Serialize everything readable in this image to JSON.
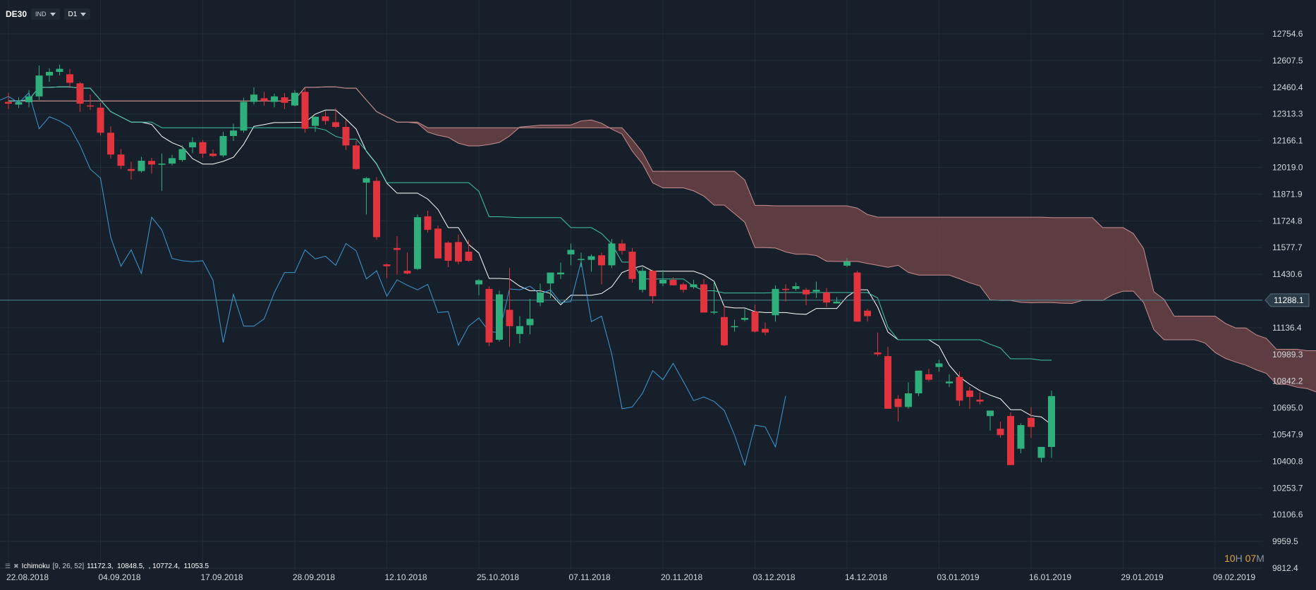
{
  "toolbar": {
    "symbol": "DE30",
    "type_label": "IND",
    "timeframe_label": "D1"
  },
  "indicator": {
    "name": "Ichimoku",
    "params": "[9, 26, 52]",
    "values": "11172.3,  10848.5,  , 10772.4,  11053.5"
  },
  "countdown": {
    "hours": "10",
    "hours_unit": "H",
    "minutes": "07",
    "minutes_unit": "M"
  },
  "colors": {
    "background": "#17202a",
    "bull": "#2faf7c",
    "bear": "#e2343f",
    "cloud": "#6a4347",
    "cloud_edge": "#c78d8f",
    "tenkan": "#ffffff",
    "kijun": "#3fc4a8",
    "chikou": "#3d9ad8",
    "grid": "#222c37",
    "price_line": "#4a8a96"
  },
  "chart_data": {
    "type": "candlestick",
    "symbol": "DE30",
    "timeframe": "D1",
    "y_ticks": [
      12754.6,
      12607.5,
      12460.4,
      12313.3,
      12166.1,
      12019.0,
      11871.9,
      11724.8,
      11577.7,
      11430.6,
      11136.4,
      10989.3,
      10842.2,
      10695.0,
      10547.9,
      10400.8,
      10253.7,
      10106.6,
      9959.5,
      9812.4
    ],
    "current_price": 11288.1,
    "x_labels": [
      "22.08.2018",
      "04.09.2018",
      "17.09.2018",
      "28.09.2018",
      "12.10.2018",
      "25.10.2018",
      "07.11.2018",
      "20.11.2018",
      "03.12.2018",
      "14.12.2018",
      "03.01.2019",
      "16.01.2019",
      "29.01.2019",
      "09.02.2019"
    ],
    "x_label_bars": [
      0,
      9,
      19,
      28,
      37,
      46,
      55,
      64,
      73,
      82,
      91,
      100,
      109,
      118
    ],
    "last_bar": 112,
    "candles_ohlc": [
      [
        12380,
        12430,
        12340,
        12370
      ],
      [
        12365,
        12405,
        12345,
        12378
      ],
      [
        12378,
        12445,
        12350,
        12410
      ],
      [
        12410,
        12580,
        12390,
        12525
      ],
      [
        12525,
        12565,
        12490,
        12545
      ],
      [
        12545,
        12585,
        12525,
        12562
      ],
      [
        12532,
        12560,
        12455,
        12485
      ],
      [
        12482,
        12490,
        12325,
        12370
      ],
      [
        12360,
        12420,
        12335,
        12355
      ],
      [
        12348,
        12375,
        12195,
        12210
      ],
      [
        12210,
        12245,
        12068,
        12090
      ],
      [
        12090,
        12120,
        12010,
        12028
      ],
      [
        12010,
        12050,
        11952,
        12000
      ],
      [
        11999,
        12078,
        11990,
        12056
      ],
      [
        12055,
        12072,
        11985,
        12035
      ],
      [
        12034,
        12095,
        11890,
        12040
      ],
      [
        12040,
        12088,
        12030,
        12070
      ],
      [
        12060,
        12140,
        12050,
        12120
      ],
      [
        12130,
        12185,
        12098,
        12158
      ],
      [
        12158,
        12170,
        12072,
        12095
      ],
      [
        12095,
        12118,
        12075,
        12082
      ],
      [
        12085,
        12215,
        12075,
        12192
      ],
      [
        12192,
        12260,
        12165,
        12222
      ],
      [
        12222,
        12403,
        12210,
        12380
      ],
      [
        12380,
        12460,
        12365,
        12420
      ],
      [
        12400,
        12435,
        12358,
        12385
      ],
      [
        12380,
        12425,
        12350,
        12410
      ],
      [
        12405,
        12428,
        12340,
        12375
      ],
      [
        12360,
        12445,
        12355,
        12430
      ],
      [
        12435,
        12455,
        12210,
        12232
      ],
      [
        12248,
        12300,
        12215,
        12298
      ],
      [
        12300,
        12330,
        12255,
        12275
      ],
      [
        12268,
        12345,
        12235,
        12242
      ],
      [
        12242,
        12280,
        12115,
        12140
      ],
      [
        12140,
        12165,
        12005,
        12010
      ],
      [
        11935,
        11965,
        11760,
        11960
      ],
      [
        11945,
        11965,
        11620,
        11635
      ],
      [
        11485,
        11490,
        11410,
        11475
      ],
      [
        11575,
        11640,
        11430,
        11565
      ],
      [
        11450,
        11550,
        11430,
        11435
      ],
      [
        11460,
        11760,
        11455,
        11745
      ],
      [
        11750,
        11780,
        11660,
        11675
      ],
      [
        11682,
        11700,
        11555,
        11518
      ],
      [
        11605,
        11612,
        11470,
        11505
      ],
      [
        11608,
        11650,
        11485,
        11500
      ],
      [
        11555,
        11620,
        11500,
        11505
      ],
      [
        11375,
        11405,
        11315,
        11398
      ],
      [
        11350,
        11365,
        11035,
        11055
      ],
      [
        11070,
        11340,
        11060,
        11320
      ],
      [
        11235,
        11465,
        11030,
        11145
      ],
      [
        11102,
        11200,
        11050,
        11145
      ],
      [
        11150,
        11295,
        11100,
        11185
      ],
      [
        11275,
        11380,
        11255,
        11330
      ],
      [
        11380,
        11385,
        11300,
        11440
      ],
      [
        11430,
        11495,
        11405,
        11440
      ],
      [
        11540,
        11600,
        11480,
        11565
      ],
      [
        11510,
        11550,
        11470,
        11515
      ],
      [
        11510,
        11540,
        11445,
        11530
      ],
      [
        11535,
        11550,
        11375,
        11480
      ],
      [
        11480,
        11625,
        11465,
        11600
      ],
      [
        11600,
        11620,
        11540,
        11560
      ],
      [
        11555,
        11575,
        11385,
        11405
      ],
      [
        11345,
        11470,
        11330,
        11450
      ],
      [
        11450,
        11455,
        11270,
        11310
      ],
      [
        11380,
        11455,
        11365,
        11400
      ],
      [
        11400,
        11415,
        11375,
        11370
      ],
      [
        11375,
        11385,
        11330,
        11345
      ],
      [
        11360,
        11400,
        11350,
        11375
      ],
      [
        11375,
        11405,
        11235,
        11220
      ],
      [
        11220,
        11390,
        11210,
        11225
      ],
      [
        11195,
        11260,
        11035,
        11040
      ],
      [
        11140,
        11180,
        11115,
        11145
      ],
      [
        11180,
        11240,
        11170,
        11190
      ],
      [
        11225,
        11262,
        11110,
        11115
      ],
      [
        11130,
        11165,
        11095,
        11110
      ],
      [
        11205,
        11370,
        11170,
        11350
      ],
      [
        11350,
        11375,
        11280,
        11345
      ],
      [
        11350,
        11385,
        11340,
        11365
      ],
      [
        11345,
        11355,
        11260,
        11320
      ],
      [
        11335,
        11390,
        11300,
        11345
      ],
      [
        11330,
        11355,
        11250,
        11275
      ],
      [
        11270,
        11305,
        11290,
        11280
      ],
      [
        11478,
        11520,
        11470,
        11500
      ],
      [
        11440,
        11450,
        11170,
        11170
      ],
      [
        11230,
        11240,
        11170,
        11200
      ],
      [
        11000,
        11110,
        10980,
        10990
      ],
      [
        10980,
        11030,
        10705,
        10690
      ],
      [
        10745,
        10765,
        10620,
        10700
      ],
      [
        10700,
        10835,
        10690,
        10775
      ],
      [
        10775,
        10880,
        10760,
        10900
      ],
      [
        10880,
        10910,
        10840,
        10850
      ],
      [
        10920,
        10960,
        10895,
        10940
      ],
      [
        10830,
        10880,
        10810,
        10840
      ],
      [
        10865,
        10895,
        10705,
        10735
      ],
      [
        10790,
        10810,
        10690,
        10755
      ],
      [
        10740,
        10780,
        10715,
        10730
      ],
      [
        10650,
        10680,
        10570,
        10680
      ],
      [
        10580,
        10620,
        10530,
        10545
      ],
      [
        10650,
        10670,
        10410,
        10380
      ],
      [
        10470,
        10610,
        10445,
        10600
      ],
      [
        10640,
        10700,
        10530,
        10590
      ],
      [
        10420,
        10480,
        10395,
        10480
      ],
      [
        10480,
        10790,
        10420,
        10760
      ]
    ],
    "ichimoku_params": [
      9,
      26,
      52
    ],
    "legend_values": [
      11172.3,
      10848.5,
      10772.4,
      11053.5
    ]
  }
}
